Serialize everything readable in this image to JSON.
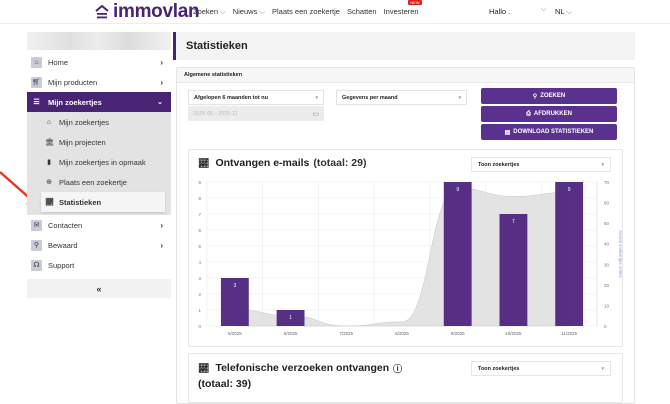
{
  "header": {
    "logo_text": "immovlan",
    "nav": [
      {
        "label": "Zoeken",
        "has_dropdown": true
      },
      {
        "label": "Nieuws",
        "has_dropdown": true
      },
      {
        "label": "Plaats een zoekertje",
        "has_dropdown": false
      },
      {
        "label": "Schatten",
        "has_dropdown": false
      },
      {
        "label": "Investeren",
        "has_dropdown": false,
        "badge": "NEW"
      }
    ],
    "greeting": "Hallo .",
    "language": "NL"
  },
  "sidebar": {
    "items": [
      {
        "label": "Home",
        "icon": "home-icon"
      },
      {
        "label": "Mijn producten",
        "icon": "cart-icon"
      },
      {
        "label": "Mijn zoekertjes",
        "icon": "list-icon",
        "active": true
      }
    ],
    "subitems": [
      {
        "label": "Mijn zoekertjes",
        "icon": "house-icon"
      },
      {
        "label": "Mijn projecten",
        "icon": "building-icon"
      },
      {
        "label": "Mijn zoekertjes in opmaak",
        "icon": "bookmark-icon"
      },
      {
        "label": "Plaats een zoekertje",
        "icon": "plus-circle-icon"
      },
      {
        "label": "Statistieken",
        "icon": "chart-line-icon",
        "current": true
      }
    ],
    "items_after": [
      {
        "label": "Contacten",
        "icon": "envelope-icon",
        "arrow": true
      },
      {
        "label": "Bewaard",
        "icon": "search-icon",
        "arrow": true
      },
      {
        "label": "Support",
        "icon": "headset-icon",
        "arrow": false
      }
    ],
    "collapse_label": "«"
  },
  "main": {
    "page_title": "Statistieken",
    "panel_title": "Algemene statistieken",
    "filters": {
      "period": "Afgelopen 6 maanden tot nu",
      "granularity": "Gegevens per maand",
      "date_range": "2025-05 - 2025-11"
    },
    "buttons": {
      "search": "ZOEKEN",
      "print": "AFDRUKKEN",
      "download": "DOWNLOAD STATISTIEKEN"
    },
    "email_card": {
      "title": "Ontvangen e-mails",
      "total": "(totaal: 29)",
      "select": "Toon zoekertjes"
    },
    "phone_card": {
      "title": "Telefonische verzoeken ontvangen",
      "total": "(totaal: 39)",
      "select": "Toon zoekertjes"
    }
  },
  "colors": {
    "brand": "#4a2474",
    "button": "#5b3190",
    "bar": "#4e2580",
    "area": "#d9d9d9"
  },
  "chart_data": {
    "type": "bar",
    "title": "Ontvangen e-mails (totaal: 29)",
    "categories": [
      "5/2025",
      "6/2025",
      "7/2025",
      "8/2025",
      "9/2025",
      "10/2025",
      "11/2025"
    ],
    "series": [
      {
        "name": "Ontvangen e-mails",
        "type": "bar",
        "axis": "left",
        "values": [
          3,
          1,
          0,
          0,
          9,
          7,
          9
        ]
      },
      {
        "name": "Aantal zoekertjes online",
        "type": "area",
        "axis": "right",
        "values": [
          8,
          5,
          0,
          2,
          67,
          63,
          65
        ]
      }
    ],
    "ylabel_left": "",
    "ylabel_right": "Aantal zoekertjes online",
    "ylim_left": [
      0,
      9
    ],
    "yticks_left": [
      0,
      1,
      2,
      3,
      4,
      5,
      6,
      7,
      8,
      9
    ],
    "ylim_right": [
      0,
      70
    ],
    "yticks_right": [
      0,
      10,
      20,
      30,
      40,
      50,
      60,
      70
    ],
    "grid": true
  }
}
